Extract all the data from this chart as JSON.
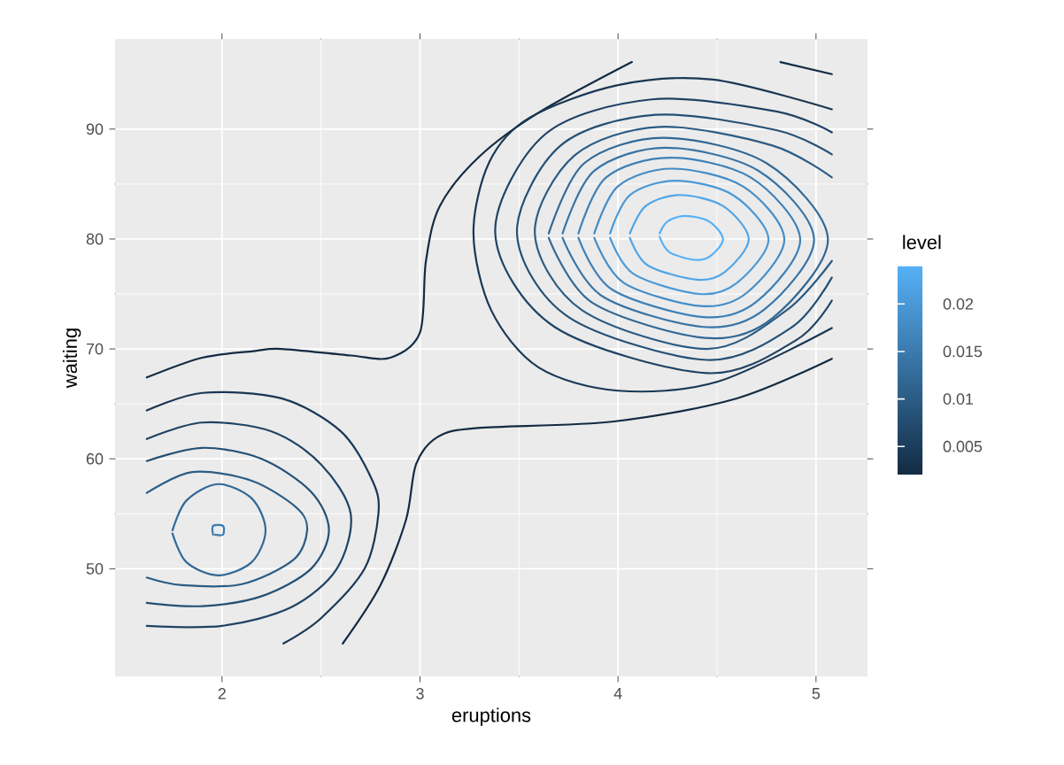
{
  "chart_data": {
    "type": "line",
    "xlabel": "eruptions",
    "ylabel": "waiting",
    "clabel": "level",
    "xlim": [
      1.46,
      5.26
    ],
    "ylim": [
      40.2,
      98.2
    ],
    "xticks": [
      2,
      3,
      4,
      5
    ],
    "yticks": [
      50,
      60,
      70,
      80,
      90
    ],
    "clim": [
      0.002,
      0.024
    ],
    "cticks": [
      0.005,
      0.01,
      0.015,
      0.02
    ],
    "grid": true,
    "series": [
      {
        "color": "#132B43",
        "x": [
          1.62,
          1.9,
          2.16,
          2.3,
          2.65,
          2.85,
          3.0,
          3.03,
          3.1,
          3.3,
          3.6,
          4.07
        ],
        "values": [
          67.4,
          69.2,
          69.8,
          70.0,
          69.4,
          69.2,
          71.5,
          78.0,
          83.0,
          87.5,
          91.5,
          96.1
        ]
      },
      {
        "color": "#132B43",
        "x": [
          4.82,
          5.08
        ],
        "values": [
          96.1,
          95.0
        ]
      },
      {
        "color": "#132B43",
        "x": [
          2.61,
          2.8,
          2.93,
          2.98,
          3.09,
          3.29,
          3.98,
          4.6,
          5.08
        ],
        "values": [
          43.2,
          48.5,
          54.5,
          59.5,
          62.0,
          62.8,
          63.4,
          65.5,
          69.1
        ]
      },
      {
        "color": "#193753",
        "x": [
          1.62,
          1.9,
          2.3,
          2.6,
          2.76,
          2.79,
          2.72,
          2.5,
          2.31
        ],
        "values": [
          64.4,
          66.0,
          65.5,
          62.5,
          58.0,
          55.0,
          50.0,
          45.5,
          43.2
        ]
      },
      {
        "color": "#1F4364",
        "x": [
          1.62,
          1.9,
          2.25,
          2.5,
          2.65,
          2.58,
          2.35,
          2.0,
          1.62
        ],
        "values": [
          61.8,
          63.3,
          62.5,
          59.5,
          55.0,
          50.0,
          46.5,
          44.8,
          44.8
        ]
      },
      {
        "color": "#255074",
        "x": [
          1.62,
          1.9,
          2.2,
          2.45,
          2.54,
          2.45,
          2.2,
          1.9,
          1.62
        ],
        "values": [
          59.8,
          61.0,
          60.0,
          57.0,
          53.5,
          50.0,
          47.5,
          46.6,
          46.9
        ]
      },
      {
        "color": "#2B5C84",
        "x": [
          1.62,
          1.85,
          2.15,
          2.38,
          2.43,
          2.36,
          2.1,
          1.8,
          1.62
        ],
        "values": [
          56.9,
          58.8,
          58.0,
          55.5,
          53.5,
          50.8,
          48.6,
          48.5,
          49.2
        ]
      },
      {
        "color": "#316895",
        "x": [
          1.75,
          1.82,
          1.98,
          2.15,
          2.22,
          2.15,
          1.98,
          1.82,
          1.75
        ],
        "values": [
          53.5,
          56.2,
          57.7,
          56.4,
          53.5,
          50.6,
          49.4,
          50.6,
          53.2
        ]
      },
      {
        "color": "#3B7AAE",
        "x": [
          1.955,
          1.955,
          2.005,
          2.005,
          1.965
        ],
        "values": [
          53.1,
          53.9,
          53.9,
          53.1,
          53.1
        ]
      },
      {
        "color": "#193753",
        "x": [
          5.08,
          4.48,
          4.0,
          3.55,
          3.35,
          3.27,
          3.36,
          3.6,
          4.0,
          4.5,
          5.08
        ],
        "values": [
          91.8,
          94.5,
          94.0,
          91.0,
          87.0,
          80.5,
          73.5,
          68.3,
          66.2,
          67.0,
          71.9
        ]
      },
      {
        "color": "#1F4364",
        "x": [
          5.08,
          4.8,
          4.17,
          3.63,
          3.38,
          3.68,
          4.45,
          4.9,
          5.08
        ],
        "values": [
          89.7,
          91.6,
          92.7,
          89.5,
          80.5,
          72.0,
          67.8,
          70.8,
          74.4
        ]
      },
      {
        "color": "#255074",
        "x": [
          5.08,
          4.8,
          4.19,
          3.71,
          3.49,
          3.75,
          4.45,
          4.88,
          5.08
        ],
        "values": [
          87.7,
          89.9,
          91.3,
          88.5,
          80.5,
          72.9,
          69.0,
          72.0,
          76.5
        ]
      },
      {
        "color": "#2B5C84",
        "x": [
          5.08,
          4.78,
          4.21,
          3.78,
          3.58,
          3.82,
          4.45,
          4.85,
          5.08
        ],
        "values": [
          85.6,
          88.5,
          90.2,
          87.6,
          80.5,
          73.5,
          70.0,
          73.5,
          78.0
        ]
      },
      {
        "color": "#316895",
        "x": [
          3.65,
          3.83,
          4.23,
          4.75,
          5.06,
          4.78,
          4.44,
          3.87,
          3.65
        ],
        "values": [
          80.5,
          86.9,
          89.2,
          86.9,
          80.0,
          72.8,
          71.0,
          74.2,
          80.1
        ]
      },
      {
        "color": "#3874A5",
        "x": [
          3.72,
          3.88,
          4.24,
          4.71,
          4.99,
          4.74,
          4.43,
          3.92,
          3.72
        ],
        "values": [
          80.5,
          86.2,
          88.3,
          86.2,
          80.0,
          73.6,
          72.0,
          74.8,
          80.1
        ]
      },
      {
        "color": "#3E80B6",
        "x": [
          3.8,
          3.94,
          4.26,
          4.67,
          4.92,
          4.7,
          4.43,
          3.97,
          3.8
        ],
        "values": [
          80.5,
          85.6,
          87.4,
          85.6,
          80.0,
          74.3,
          72.9,
          75.4,
          80.1
        ]
      },
      {
        "color": "#448CC6",
        "x": [
          3.88,
          4.0,
          4.27,
          4.63,
          4.84,
          4.65,
          4.42,
          4.03,
          3.88
        ],
        "values": [
          80.5,
          84.8,
          86.4,
          84.8,
          80.0,
          75.1,
          73.9,
          76.0,
          80.1
        ]
      },
      {
        "color": "#4A99D6",
        "x": [
          3.96,
          4.06,
          4.29,
          4.58,
          4.76,
          4.6,
          4.41,
          4.08,
          3.96
        ],
        "values": [
          80.5,
          84.0,
          85.3,
          84.0,
          80.0,
          76.0,
          75.0,
          76.8,
          80.1
        ]
      },
      {
        "color": "#50A5E7",
        "x": [
          4.06,
          4.14,
          4.31,
          4.53,
          4.66,
          4.54,
          4.4,
          4.15,
          4.06
        ],
        "values": [
          80.5,
          83.0,
          84.0,
          83.0,
          80.0,
          77.0,
          76.3,
          77.6,
          80.1
        ]
      },
      {
        "color": "#56B1F7",
        "x": [
          4.21,
          4.25,
          4.34,
          4.46,
          4.53,
          4.47,
          4.39,
          4.26,
          4.21
        ],
        "values": [
          80.5,
          81.6,
          82.1,
          81.6,
          80.0,
          78.5,
          78.1,
          78.8,
          80.2
        ]
      }
    ]
  }
}
